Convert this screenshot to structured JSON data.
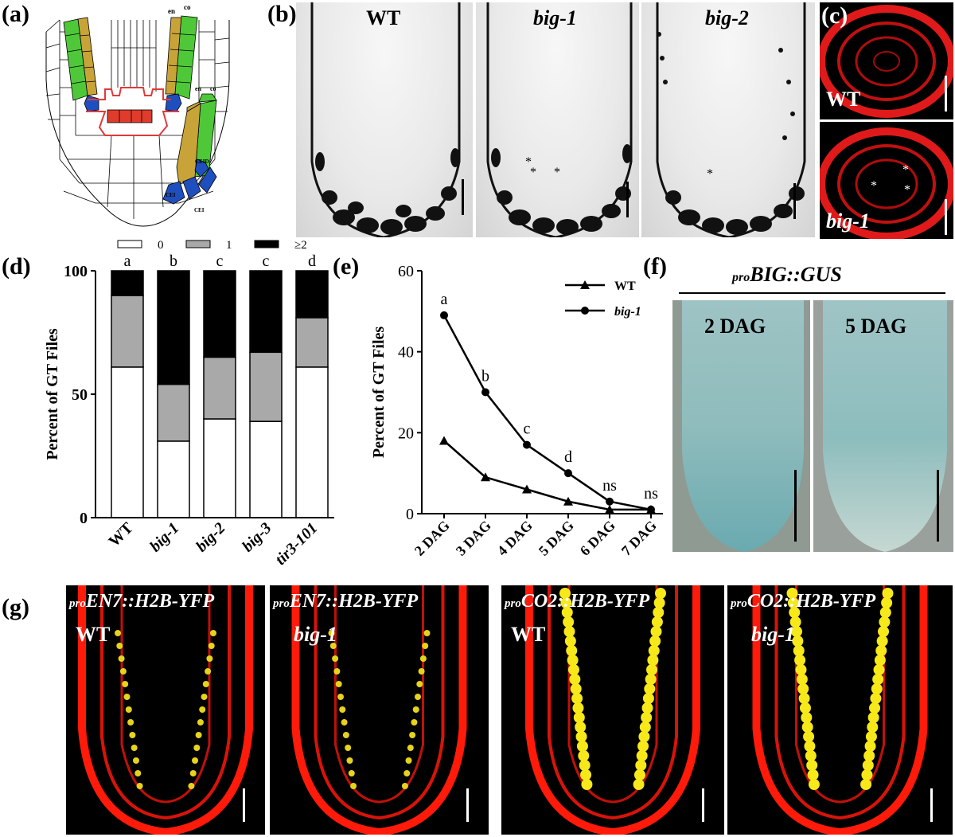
{
  "panels": {
    "a": {
      "label": "(a)",
      "labels": {
        "en": "en",
        "co": "co",
        "ceid": "CEID",
        "cei1": "CEI",
        "cei2": "CEI",
        "en2": "en",
        "co2": "co"
      },
      "colors": {
        "endodermis": "#c8a338",
        "cortex": "#4ec839",
        "cei": "#1f4fbf",
        "qc": "#e03c2c",
        "outline": "#e23a3a"
      }
    },
    "b": {
      "label": "(b)",
      "images": [
        "WT",
        "big-1",
        "big-2"
      ]
    },
    "c": {
      "label": "(c)",
      "images": [
        "WT",
        "big-1"
      ]
    },
    "d": {
      "label": "(d)"
    },
    "e": {
      "label": "(e)"
    },
    "f": {
      "label": "(f)",
      "title_sub": "pro",
      "title_main": "BIG::GUS",
      "images": [
        "2 DAG",
        "5 DAG"
      ]
    },
    "g": {
      "label": "(g)",
      "images": [
        {
          "sub": "pro",
          "construct": "EN7::H2B-YFP",
          "genotype": "WT"
        },
        {
          "sub": "pro",
          "construct": "EN7::H2B-YFP",
          "genotype": "big-1"
        },
        {
          "sub": "pro",
          "construct": "CO2::H2B-YFP",
          "genotype": "WT"
        },
        {
          "sub": "pro",
          "construct": "CO2::H2B-YFP",
          "genotype": "big-1"
        }
      ]
    }
  },
  "chart_data": [
    {
      "type": "bar",
      "ylabel": "Percent of GT Files",
      "categories": [
        "WT",
        "big-1",
        "big-2",
        "big-3",
        "tir3-101"
      ],
      "legend": [
        "0",
        "1",
        "≥2"
      ],
      "legend_colors": [
        "#ffffff",
        "#a9a9a9",
        "#000000"
      ],
      "series": [
        {
          "name": "0",
          "values": [
            61,
            31,
            40,
            39,
            61
          ]
        },
        {
          "name": "1",
          "values": [
            29,
            23,
            25,
            28,
            20
          ]
        },
        {
          "name": "≥2",
          "values": [
            10,
            46,
            35,
            33,
            19
          ]
        }
      ],
      "significance": [
        "a",
        "b",
        "c",
        "c",
        "d"
      ],
      "ylim": [
        0,
        100
      ],
      "yticks": [
        "0",
        "50",
        "100"
      ],
      "stacked": true
    },
    {
      "type": "line",
      "ylabel": "Percent of GT Files",
      "x": [
        "2 DAG",
        "3 DAG",
        "4 DAG",
        "5 DAG",
        "6 DAG",
        "7 DAG"
      ],
      "series": [
        {
          "name": "WT",
          "marker": "triangle",
          "values": [
            18,
            9,
            6,
            3,
            1,
            1
          ]
        },
        {
          "name": "big-1",
          "marker": "circle",
          "values": [
            49,
            30,
            17,
            10,
            3,
            1
          ]
        }
      ],
      "significance": [
        "a",
        "b",
        "c",
        "d",
        "ns",
        "ns"
      ],
      "ylim": [
        0,
        60
      ],
      "yticks": [
        "0",
        "20",
        "40",
        "60"
      ]
    }
  ]
}
